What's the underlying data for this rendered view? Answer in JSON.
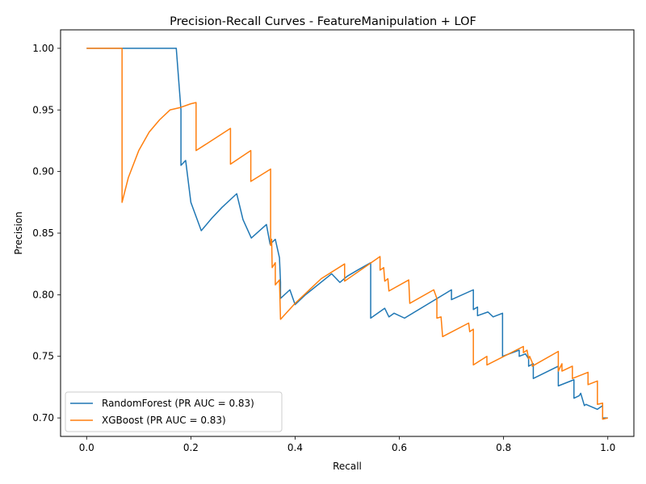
{
  "chart_data": {
    "type": "line",
    "title": "Precision-Recall Curves - FeatureManipulation + LOF",
    "xlabel": "Recall",
    "ylabel": "Precision",
    "xlim": [
      -0.05,
      1.05
    ],
    "ylim": [
      0.685,
      1.015
    ],
    "xticks": [
      0.0,
      0.2,
      0.4,
      0.6,
      0.8,
      1.0
    ],
    "xtick_labels": [
      "0.0",
      "0.2",
      "0.4",
      "0.6",
      "0.8",
      "1.0"
    ],
    "yticks": [
      0.7,
      0.75,
      0.8,
      0.85,
      0.9,
      0.95,
      1.0
    ],
    "ytick_labels": [
      "0.70",
      "0.75",
      "0.80",
      "0.85",
      "0.90",
      "0.95",
      "1.00"
    ],
    "grid": false,
    "legend_position": "lower-left",
    "series": [
      {
        "name": "RandomForest (PR AUC = 0.83)",
        "color": "#1f77b4",
        "x": [
          0.0,
          0.172,
          0.181,
          0.181,
          0.19,
          0.19,
          0.2,
          0.22,
          0.24,
          0.26,
          0.288,
          0.3,
          0.316,
          0.345,
          0.352,
          0.362,
          0.37,
          0.372,
          0.372,
          0.39,
          0.4,
          0.42,
          0.47,
          0.486,
          0.5,
          0.52,
          0.545,
          0.545,
          0.572,
          0.58,
          0.59,
          0.61,
          0.7,
          0.7,
          0.742,
          0.742,
          0.75,
          0.75,
          0.77,
          0.78,
          0.798,
          0.798,
          0.83,
          0.83,
          0.842,
          0.848,
          0.848,
          0.857,
          0.857,
          0.905,
          0.905,
          0.935,
          0.935,
          0.945,
          0.948,
          0.955,
          0.958,
          0.98,
          0.99,
          0.99,
          1.0
        ],
        "y": [
          1.0,
          1.0,
          0.95,
          0.905,
          0.909,
          0.909,
          0.875,
          0.852,
          0.862,
          0.871,
          0.882,
          0.861,
          0.846,
          0.857,
          0.841,
          0.845,
          0.83,
          0.81,
          0.797,
          0.804,
          0.792,
          0.8,
          0.817,
          0.81,
          0.815,
          0.82,
          0.826,
          0.781,
          0.789,
          0.782,
          0.785,
          0.781,
          0.804,
          0.796,
          0.804,
          0.788,
          0.79,
          0.783,
          0.786,
          0.782,
          0.785,
          0.75,
          0.755,
          0.75,
          0.752,
          0.748,
          0.742,
          0.744,
          0.732,
          0.742,
          0.726,
          0.731,
          0.716,
          0.718,
          0.72,
          0.71,
          0.711,
          0.707,
          0.71,
          0.7,
          0.7
        ]
      },
      {
        "name": "XGBoost (PR AUC = 0.83)",
        "color": "#ff7f0e",
        "x": [
          0.0,
          0.068,
          0.068,
          0.08,
          0.1,
          0.12,
          0.14,
          0.16,
          0.18,
          0.2,
          0.21,
          0.21,
          0.276,
          0.276,
          0.315,
          0.315,
          0.353,
          0.353,
          0.355,
          0.356,
          0.362,
          0.362,
          0.37,
          0.372,
          0.372,
          0.4,
          0.45,
          0.495,
          0.495,
          0.563,
          0.563,
          0.57,
          0.572,
          0.578,
          0.58,
          0.618,
          0.62,
          0.666,
          0.672,
          0.672,
          0.68,
          0.683,
          0.733,
          0.735,
          0.742,
          0.742,
          0.768,
          0.768,
          0.838,
          0.838,
          0.845,
          0.848,
          0.85,
          0.855,
          0.855,
          0.905,
          0.905,
          0.912,
          0.912,
          0.932,
          0.932,
          0.962,
          0.962,
          0.98,
          0.98,
          0.99,
          0.99,
          1.0
        ],
        "y": [
          1.0,
          1.0,
          0.875,
          0.895,
          0.917,
          0.932,
          0.942,
          0.95,
          0.952,
          0.955,
          0.956,
          0.917,
          0.935,
          0.906,
          0.917,
          0.892,
          0.902,
          0.84,
          0.845,
          0.822,
          0.826,
          0.808,
          0.812,
          0.78,
          0.78,
          0.793,
          0.813,
          0.825,
          0.811,
          0.831,
          0.82,
          0.822,
          0.811,
          0.813,
          0.803,
          0.812,
          0.793,
          0.804,
          0.797,
          0.781,
          0.782,
          0.766,
          0.777,
          0.77,
          0.772,
          0.743,
          0.75,
          0.743,
          0.758,
          0.753,
          0.755,
          0.748,
          0.75,
          0.745,
          0.742,
          0.754,
          0.738,
          0.744,
          0.738,
          0.742,
          0.732,
          0.737,
          0.727,
          0.73,
          0.711,
          0.712,
          0.699,
          0.7
        ]
      }
    ]
  }
}
